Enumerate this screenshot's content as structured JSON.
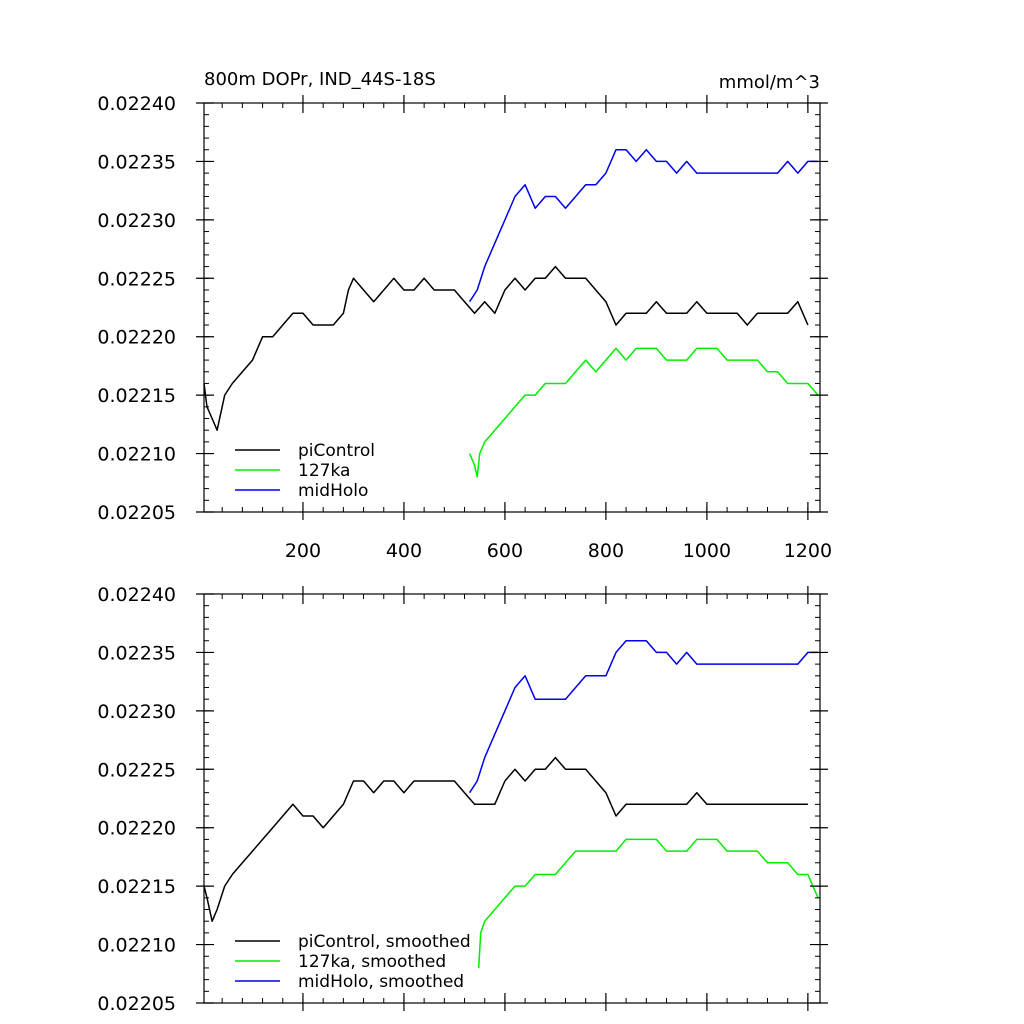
{
  "chart_data": [
    {
      "type": "line",
      "title": "800m DOPr, IND_44S-18S",
      "units_label": "mmol/m^3",
      "xlim": [
        4,
        1224
      ],
      "ylim": [
        0.02205,
        0.0224
      ],
      "xticks": [
        200,
        400,
        600,
        800,
        1000,
        1200
      ],
      "xtick_labels": [
        "200",
        "400",
        "600",
        "800",
        "1000",
        "1200"
      ],
      "yticks": [
        0.02205,
        0.0221,
        0.02215,
        0.0222,
        0.02225,
        0.0223,
        0.02235,
        0.0224
      ],
      "ytick_labels": [
        "0.02205",
        "0.02210",
        "0.02215",
        "0.02220",
        "0.02225",
        "0.02230",
        "0.02235",
        "0.02240"
      ],
      "legend_position": "bottom-left",
      "series": [
        {
          "name": "piControl",
          "color": "#000000",
          "x": [
            4,
            10,
            20,
            30,
            45,
            60,
            80,
            100,
            120,
            140,
            160,
            180,
            200,
            220,
            240,
            260,
            280,
            290,
            300,
            320,
            340,
            360,
            380,
            400,
            420,
            440,
            460,
            480,
            500,
            520,
            540,
            560,
            580,
            600,
            620,
            640,
            660,
            680,
            700,
            720,
            740,
            760,
            780,
            800,
            820,
            840,
            860,
            880,
            900,
            920,
            940,
            960,
            980,
            1000,
            1020,
            1040,
            1060,
            1080,
            1100,
            1120,
            1140,
            1160,
            1180,
            1200
          ],
          "y": [
            0.02216,
            0.02214,
            0.02213,
            0.02212,
            0.02215,
            0.02216,
            0.02217,
            0.02218,
            0.0222,
            0.0222,
            0.02221,
            0.02222,
            0.02222,
            0.02221,
            0.02221,
            0.02221,
            0.02222,
            0.02224,
            0.02225,
            0.02224,
            0.02223,
            0.02224,
            0.02225,
            0.02224,
            0.02224,
            0.02225,
            0.02224,
            0.02224,
            0.02224,
            0.02223,
            0.02222,
            0.02223,
            0.02222,
            0.02224,
            0.02225,
            0.02224,
            0.02225,
            0.02225,
            0.02226,
            0.02225,
            0.02225,
            0.02225,
            0.02224,
            0.02223,
            0.02221,
            0.02222,
            0.02222,
            0.02222,
            0.02223,
            0.02222,
            0.02222,
            0.02222,
            0.02223,
            0.02222,
            0.02222,
            0.02222,
            0.02222,
            0.02221,
            0.02222,
            0.02222,
            0.02222,
            0.02222,
            0.02223,
            0.02221
          ]
        },
        {
          "name": "127ka",
          "color": "#00ee00",
          "x": [
            530,
            540,
            545,
            550,
            560,
            580,
            600,
            620,
            640,
            660,
            680,
            700,
            720,
            740,
            760,
            780,
            800,
            820,
            840,
            860,
            880,
            900,
            920,
            940,
            960,
            980,
            1000,
            1020,
            1040,
            1060,
            1080,
            1100,
            1120,
            1140,
            1160,
            1180,
            1200,
            1220
          ],
          "y": [
            0.0221,
            0.02209,
            0.02208,
            0.0221,
            0.02211,
            0.02212,
            0.02213,
            0.02214,
            0.02215,
            0.02215,
            0.02216,
            0.02216,
            0.02216,
            0.02217,
            0.02218,
            0.02217,
            0.02218,
            0.02219,
            0.02218,
            0.02219,
            0.02219,
            0.02219,
            0.02218,
            0.02218,
            0.02218,
            0.02219,
            0.02219,
            0.02219,
            0.02218,
            0.02218,
            0.02218,
            0.02218,
            0.02217,
            0.02217,
            0.02216,
            0.02216,
            0.02216,
            0.02215
          ]
        },
        {
          "name": "midHolo",
          "color": "#0000ee",
          "x": [
            530,
            545,
            560,
            580,
            600,
            620,
            640,
            660,
            680,
            700,
            720,
            740,
            760,
            780,
            800,
            820,
            840,
            860,
            880,
            900,
            920,
            940,
            960,
            980,
            1000,
            1020,
            1040,
            1060,
            1080,
            1100,
            1120,
            1140,
            1160,
            1180,
            1200,
            1220
          ],
          "y": [
            0.02223,
            0.02224,
            0.02226,
            0.02228,
            0.0223,
            0.02232,
            0.02233,
            0.02231,
            0.02232,
            0.02232,
            0.02231,
            0.02232,
            0.02233,
            0.02233,
            0.02234,
            0.02236,
            0.02236,
            0.02235,
            0.02236,
            0.02235,
            0.02235,
            0.02234,
            0.02235,
            0.02234,
            0.02234,
            0.02234,
            0.02234,
            0.02234,
            0.02234,
            0.02234,
            0.02234,
            0.02234,
            0.02235,
            0.02234,
            0.02235,
            0.02235
          ]
        }
      ]
    },
    {
      "type": "line",
      "xlim": [
        4,
        1224
      ],
      "ylim": [
        0.02205,
        0.0224
      ],
      "xticks": [
        200,
        400,
        600,
        800,
        1000,
        1200
      ],
      "yticks": [
        0.02205,
        0.0221,
        0.02215,
        0.0222,
        0.02225,
        0.0223,
        0.02235,
        0.0224
      ],
      "ytick_labels": [
        "0.02205",
        "0.02210",
        "0.02215",
        "0.02220",
        "0.02225",
        "0.02230",
        "0.02235",
        "0.02240"
      ],
      "legend_position": "bottom-left",
      "series": [
        {
          "name": "piControl, smoothed",
          "color": "#000000",
          "x": [
            4,
            10,
            20,
            30,
            45,
            60,
            80,
            100,
            120,
            140,
            160,
            180,
            200,
            220,
            240,
            260,
            280,
            290,
            300,
            320,
            340,
            360,
            380,
            400,
            420,
            440,
            460,
            480,
            500,
            520,
            540,
            560,
            580,
            600,
            620,
            640,
            660,
            680,
            700,
            720,
            740,
            760,
            780,
            800,
            820,
            840,
            860,
            880,
            900,
            920,
            940,
            960,
            980,
            1000,
            1020,
            1040,
            1060,
            1080,
            1100,
            1120,
            1140,
            1160,
            1180,
            1200
          ],
          "y": [
            0.02215,
            0.02214,
            0.02212,
            0.02213,
            0.02215,
            0.02216,
            0.02217,
            0.02218,
            0.02219,
            0.0222,
            0.02221,
            0.02222,
            0.02221,
            0.02221,
            0.0222,
            0.02221,
            0.02222,
            0.02223,
            0.02224,
            0.02224,
            0.02223,
            0.02224,
            0.02224,
            0.02223,
            0.02224,
            0.02224,
            0.02224,
            0.02224,
            0.02224,
            0.02223,
            0.02222,
            0.02222,
            0.02222,
            0.02224,
            0.02225,
            0.02224,
            0.02225,
            0.02225,
            0.02226,
            0.02225,
            0.02225,
            0.02225,
            0.02224,
            0.02223,
            0.02221,
            0.02222,
            0.02222,
            0.02222,
            0.02222,
            0.02222,
            0.02222,
            0.02222,
            0.02223,
            0.02222,
            0.02222,
            0.02222,
            0.02222,
            0.02222,
            0.02222,
            0.02222,
            0.02222,
            0.02222,
            0.02222,
            0.02222
          ]
        },
        {
          "name": "127ka, smoothed",
          "color": "#00ee00",
          "x": [
            548,
            552,
            560,
            580,
            600,
            620,
            640,
            660,
            680,
            700,
            720,
            740,
            760,
            780,
            800,
            820,
            840,
            860,
            880,
            900,
            920,
            940,
            960,
            980,
            1000,
            1020,
            1040,
            1060,
            1080,
            1100,
            1120,
            1140,
            1160,
            1180,
            1200,
            1220
          ],
          "y": [
            0.02208,
            0.02211,
            0.02212,
            0.02213,
            0.02214,
            0.02215,
            0.02215,
            0.02216,
            0.02216,
            0.02216,
            0.02217,
            0.02218,
            0.02218,
            0.02218,
            0.02218,
            0.02218,
            0.02219,
            0.02219,
            0.02219,
            0.02219,
            0.02218,
            0.02218,
            0.02218,
            0.02219,
            0.02219,
            0.02219,
            0.02218,
            0.02218,
            0.02218,
            0.02218,
            0.02217,
            0.02217,
            0.02217,
            0.02216,
            0.02216,
            0.02214
          ]
        },
        {
          "name": "midHolo, smoothed",
          "color": "#0000ee",
          "x": [
            530,
            545,
            560,
            580,
            600,
            620,
            640,
            660,
            680,
            700,
            720,
            740,
            760,
            780,
            800,
            820,
            840,
            860,
            880,
            900,
            920,
            940,
            960,
            980,
            1000,
            1020,
            1040,
            1060,
            1080,
            1100,
            1120,
            1140,
            1160,
            1180,
            1200,
            1220
          ],
          "y": [
            0.02223,
            0.02224,
            0.02226,
            0.02228,
            0.0223,
            0.02232,
            0.02233,
            0.02231,
            0.02231,
            0.02231,
            0.02231,
            0.02232,
            0.02233,
            0.02233,
            0.02233,
            0.02235,
            0.02236,
            0.02236,
            0.02236,
            0.02235,
            0.02235,
            0.02234,
            0.02235,
            0.02234,
            0.02234,
            0.02234,
            0.02234,
            0.02234,
            0.02234,
            0.02234,
            0.02234,
            0.02234,
            0.02234,
            0.02234,
            0.02235,
            0.02235
          ]
        }
      ]
    }
  ]
}
